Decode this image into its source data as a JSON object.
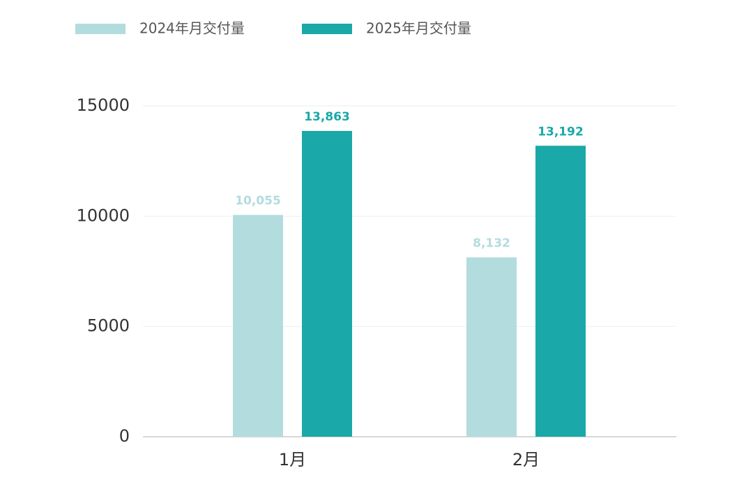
{
  "chart_data": {
    "type": "bar",
    "categories": [
      "1月",
      "2月"
    ],
    "series": [
      {
        "name": "2024年月交付量",
        "color": "#b3dcdf",
        "values": [
          10055,
          8132
        ],
        "value_labels": [
          "10,055",
          "8,132"
        ]
      },
      {
        "name": "2025年月交付量",
        "color": "#1aa8a8",
        "values": [
          13863,
          13192
        ],
        "value_labels": [
          "13,863",
          "13,192"
        ]
      }
    ],
    "ylim": [
      0,
      15000
    ],
    "yticks": [
      0,
      5000,
      10000,
      15000
    ],
    "grid": true,
    "legend": "top"
  }
}
